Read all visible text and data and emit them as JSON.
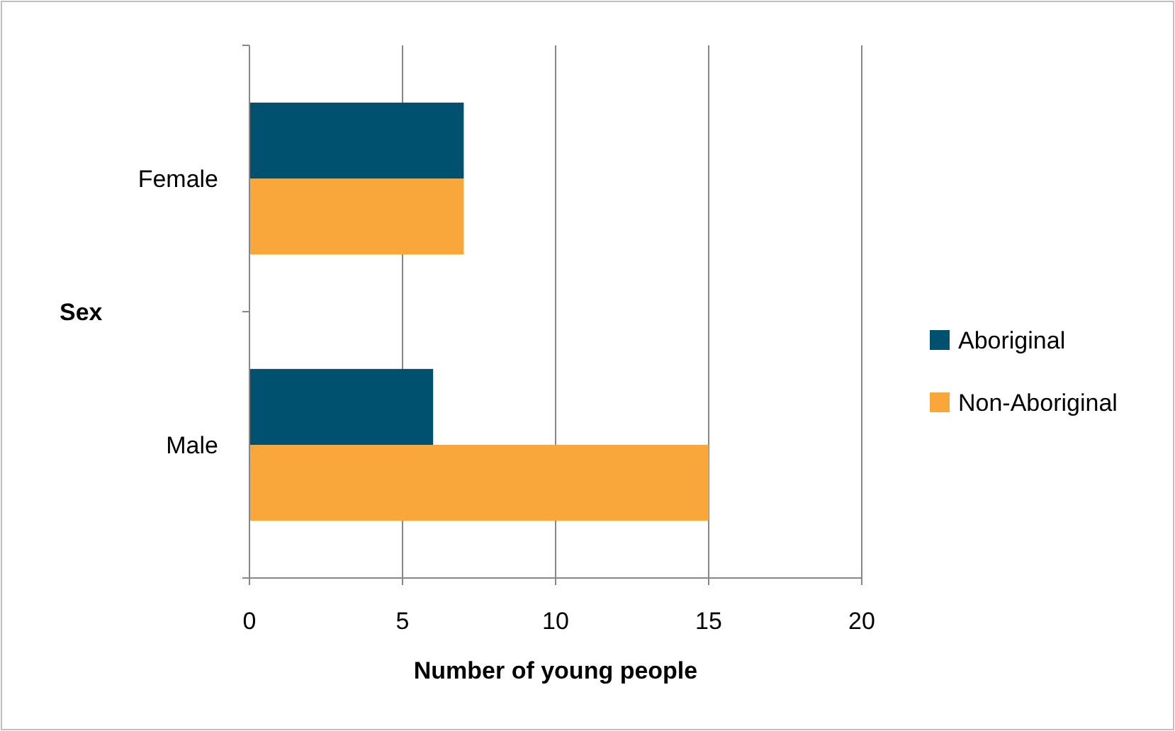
{
  "chart_data": {
    "type": "bar",
    "orientation": "horizontal",
    "categories": [
      "Female",
      "Male"
    ],
    "series": [
      {
        "name": "Aboriginal",
        "color": "#00506f",
        "values": [
          7,
          6
        ]
      },
      {
        "name": "Non-Aboriginal",
        "color": "#f9a73a",
        "values": [
          7,
          15
        ]
      }
    ],
    "xlim": [
      0,
      20
    ],
    "xticks": [
      0,
      5,
      10,
      15,
      20
    ],
    "xlabel": "Number of young people",
    "ylabel": "Sex",
    "grid": "x",
    "legend": "right"
  }
}
